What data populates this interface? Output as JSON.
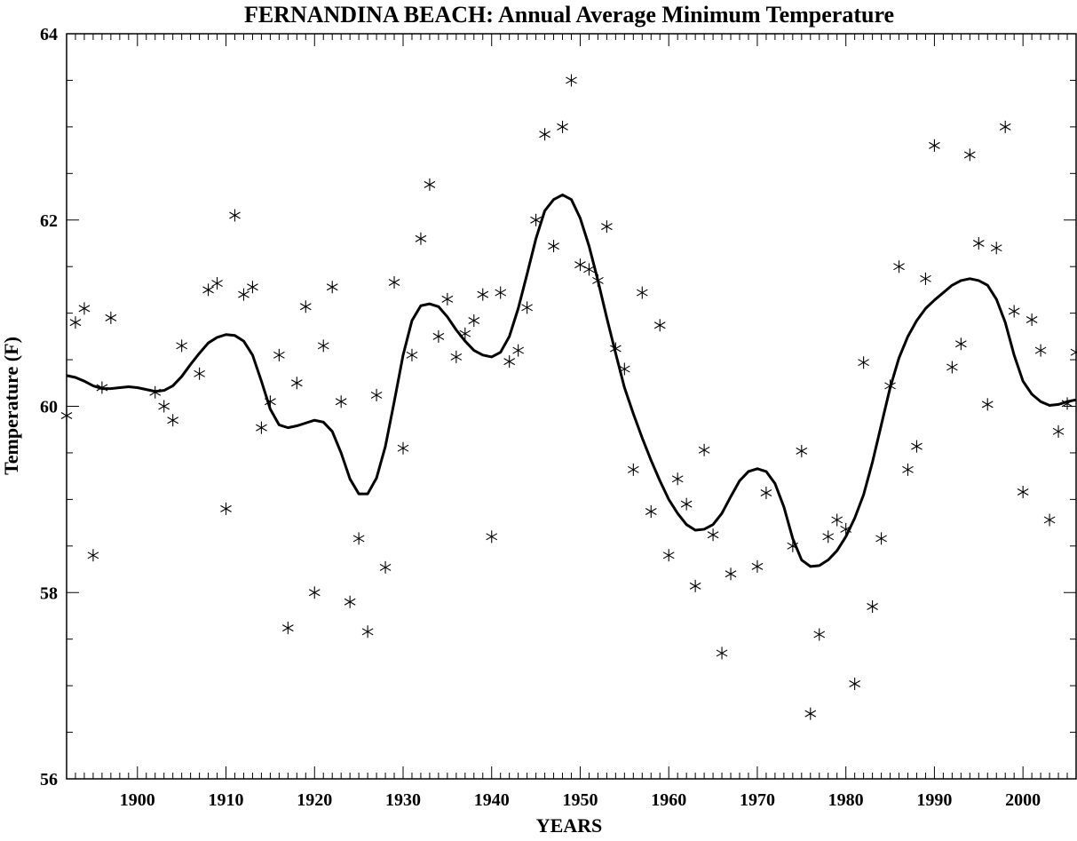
{
  "chart_data": {
    "type": "scatter",
    "title": "FERNANDINA BEACH: Annual Average Minimum Temperature",
    "xlabel": "YEARS",
    "ylabel": "Temperature (F)",
    "xlim": [
      1892,
      2006
    ],
    "ylim": [
      56,
      64
    ],
    "xticks": [
      1900,
      1910,
      1920,
      1930,
      1940,
      1950,
      1960,
      1970,
      1980,
      1990,
      2000
    ],
    "yticks": [
      56,
      58,
      60,
      62,
      64
    ],
    "grid": false,
    "legend": "none",
    "series": [
      {
        "marker": "asterisk",
        "points": [
          [
            1892,
            59.9
          ],
          [
            1893,
            60.9
          ],
          [
            1894,
            61.05
          ],
          [
            1895,
            58.4
          ],
          [
            1896,
            60.2
          ],
          [
            1897,
            60.95
          ],
          [
            1902,
            60.15
          ],
          [
            1903,
            60.0
          ],
          [
            1904,
            59.85
          ],
          [
            1905,
            60.65
          ],
          [
            1907,
            60.35
          ],
          [
            1908,
            61.25
          ],
          [
            1909,
            61.32
          ],
          [
            1910,
            58.9
          ],
          [
            1911,
            62.05
          ],
          [
            1912,
            61.2
          ],
          [
            1913,
            61.28
          ],
          [
            1914,
            59.77
          ],
          [
            1915,
            60.05
          ],
          [
            1916,
            60.55
          ],
          [
            1917,
            57.62
          ],
          [
            1918,
            60.25
          ],
          [
            1919,
            61.07
          ],
          [
            1920,
            58.0
          ],
          [
            1921,
            60.65
          ],
          [
            1922,
            61.28
          ],
          [
            1923,
            60.05
          ],
          [
            1924,
            57.9
          ],
          [
            1925,
            58.58
          ],
          [
            1926,
            57.58
          ],
          [
            1927,
            60.12
          ],
          [
            1928,
            58.27
          ],
          [
            1929,
            61.33
          ],
          [
            1930,
            59.55
          ],
          [
            1931,
            60.55
          ],
          [
            1932,
            61.8
          ],
          [
            1933,
            62.38
          ],
          [
            1934,
            60.75
          ],
          [
            1935,
            61.15
          ],
          [
            1936,
            60.53
          ],
          [
            1937,
            60.78
          ],
          [
            1938,
            60.92
          ],
          [
            1939,
            61.2
          ],
          [
            1940,
            58.6
          ],
          [
            1941,
            61.22
          ],
          [
            1942,
            60.48
          ],
          [
            1943,
            60.6
          ],
          [
            1944,
            61.06
          ],
          [
            1945,
            62.0
          ],
          [
            1946,
            62.92
          ],
          [
            1947,
            61.72
          ],
          [
            1948,
            63.0
          ],
          [
            1949,
            63.5
          ],
          [
            1950,
            61.52
          ],
          [
            1951,
            61.47
          ],
          [
            1952,
            61.35
          ],
          [
            1953,
            61.93
          ],
          [
            1954,
            60.62
          ],
          [
            1955,
            60.4
          ],
          [
            1956,
            59.32
          ],
          [
            1957,
            61.22
          ],
          [
            1958,
            58.87
          ],
          [
            1959,
            60.87
          ],
          [
            1960,
            58.4
          ],
          [
            1961,
            59.22
          ],
          [
            1962,
            58.95
          ],
          [
            1963,
            58.07
          ],
          [
            1964,
            59.53
          ],
          [
            1965,
            58.62
          ],
          [
            1966,
            57.35
          ],
          [
            1967,
            58.2
          ],
          [
            1970,
            58.28
          ],
          [
            1971,
            59.07
          ],
          [
            1974,
            58.5
          ],
          [
            1975,
            59.52
          ],
          [
            1976,
            56.7
          ],
          [
            1977,
            57.55
          ],
          [
            1978,
            58.6
          ],
          [
            1979,
            58.78
          ],
          [
            1980,
            58.68
          ],
          [
            1981,
            57.02
          ],
          [
            1982,
            60.47
          ],
          [
            1983,
            57.85
          ],
          [
            1984,
            58.58
          ],
          [
            1985,
            60.22
          ],
          [
            1986,
            61.5
          ],
          [
            1987,
            59.32
          ],
          [
            1988,
            59.57
          ],
          [
            1989,
            61.37
          ],
          [
            1990,
            62.8
          ],
          [
            1992,
            60.42
          ],
          [
            1993,
            60.67
          ],
          [
            1994,
            62.7
          ],
          [
            1995,
            61.75
          ],
          [
            1996,
            60.02
          ],
          [
            1997,
            61.7
          ],
          [
            1998,
            63.0
          ],
          [
            1999,
            61.02
          ],
          [
            2000,
            59.08
          ],
          [
            2001,
            60.93
          ],
          [
            2002,
            60.6
          ],
          [
            2003,
            58.78
          ],
          [
            2004,
            59.73
          ],
          [
            2005,
            60.03
          ],
          [
            2006,
            60.58
          ]
        ]
      },
      {
        "marker": "none",
        "line": "smooth",
        "points": [
          [
            1892,
            60.33
          ],
          [
            1893,
            60.31
          ],
          [
            1894,
            60.27
          ],
          [
            1895,
            60.22
          ],
          [
            1896,
            60.19
          ],
          [
            1897,
            60.19
          ],
          [
            1898,
            60.2
          ],
          [
            1899,
            60.21
          ],
          [
            1900,
            60.2
          ],
          [
            1901,
            60.18
          ],
          [
            1902,
            60.16
          ],
          [
            1903,
            60.17
          ],
          [
            1904,
            60.22
          ],
          [
            1905,
            60.32
          ],
          [
            1906,
            60.45
          ],
          [
            1907,
            60.57
          ],
          [
            1908,
            60.68
          ],
          [
            1909,
            60.74
          ],
          [
            1910,
            60.77
          ],
          [
            1911,
            60.76
          ],
          [
            1912,
            60.7
          ],
          [
            1913,
            60.55
          ],
          [
            1914,
            60.27
          ],
          [
            1915,
            59.97
          ],
          [
            1916,
            59.8
          ],
          [
            1917,
            59.77
          ],
          [
            1918,
            59.79
          ],
          [
            1919,
            59.82
          ],
          [
            1920,
            59.85
          ],
          [
            1921,
            59.83
          ],
          [
            1922,
            59.73
          ],
          [
            1923,
            59.5
          ],
          [
            1924,
            59.22
          ],
          [
            1925,
            59.06
          ],
          [
            1926,
            59.06
          ],
          [
            1927,
            59.23
          ],
          [
            1928,
            59.57
          ],
          [
            1929,
            60.05
          ],
          [
            1930,
            60.55
          ],
          [
            1931,
            60.92
          ],
          [
            1932,
            61.08
          ],
          [
            1933,
            61.1
          ],
          [
            1934,
            61.07
          ],
          [
            1935,
            60.96
          ],
          [
            1936,
            60.82
          ],
          [
            1937,
            60.7
          ],
          [
            1938,
            60.6
          ],
          [
            1939,
            60.55
          ],
          [
            1940,
            60.53
          ],
          [
            1941,
            60.58
          ],
          [
            1942,
            60.75
          ],
          [
            1943,
            61.05
          ],
          [
            1944,
            61.42
          ],
          [
            1945,
            61.8
          ],
          [
            1946,
            62.1
          ],
          [
            1947,
            62.22
          ],
          [
            1948,
            62.27
          ],
          [
            1949,
            62.22
          ],
          [
            1950,
            62.02
          ],
          [
            1951,
            61.72
          ],
          [
            1952,
            61.35
          ],
          [
            1953,
            60.95
          ],
          [
            1954,
            60.57
          ],
          [
            1955,
            60.2
          ],
          [
            1956,
            59.92
          ],
          [
            1957,
            59.66
          ],
          [
            1958,
            59.42
          ],
          [
            1959,
            59.2
          ],
          [
            1960,
            59.0
          ],
          [
            1961,
            58.85
          ],
          [
            1962,
            58.73
          ],
          [
            1963,
            58.67
          ],
          [
            1964,
            58.68
          ],
          [
            1965,
            58.73
          ],
          [
            1966,
            58.85
          ],
          [
            1967,
            59.03
          ],
          [
            1968,
            59.2
          ],
          [
            1969,
            59.3
          ],
          [
            1970,
            59.33
          ],
          [
            1971,
            59.3
          ],
          [
            1972,
            59.17
          ],
          [
            1973,
            58.92
          ],
          [
            1974,
            58.58
          ],
          [
            1975,
            58.35
          ],
          [
            1976,
            58.28
          ],
          [
            1977,
            58.29
          ],
          [
            1978,
            58.35
          ],
          [
            1979,
            58.45
          ],
          [
            1980,
            58.6
          ],
          [
            1981,
            58.8
          ],
          [
            1982,
            59.05
          ],
          [
            1983,
            59.4
          ],
          [
            1984,
            59.8
          ],
          [
            1985,
            60.2
          ],
          [
            1986,
            60.52
          ],
          [
            1987,
            60.75
          ],
          [
            1988,
            60.92
          ],
          [
            1989,
            61.05
          ],
          [
            1990,
            61.14
          ],
          [
            1991,
            61.22
          ],
          [
            1992,
            61.3
          ],
          [
            1993,
            61.35
          ],
          [
            1994,
            61.37
          ],
          [
            1995,
            61.35
          ],
          [
            1996,
            61.3
          ],
          [
            1997,
            61.15
          ],
          [
            1998,
            60.9
          ],
          [
            1999,
            60.55
          ],
          [
            2000,
            60.27
          ],
          [
            2001,
            60.13
          ],
          [
            2002,
            60.05
          ],
          [
            2003,
            60.01
          ],
          [
            2004,
            60.02
          ],
          [
            2005,
            60.05
          ],
          [
            2006,
            60.07
          ]
        ]
      }
    ]
  }
}
